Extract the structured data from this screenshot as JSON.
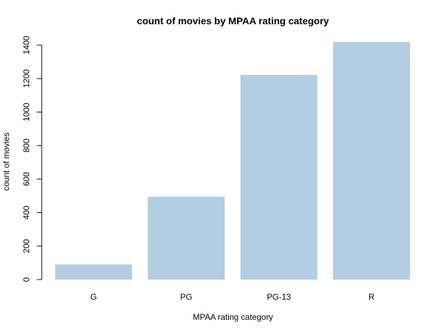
{
  "chart_data": {
    "type": "bar",
    "title": "count of movies by MPAA rating category",
    "xlabel": "MPAA rating category",
    "ylabel": "count of movies",
    "categories": [
      "G",
      "PG",
      "PG-13",
      "R"
    ],
    "values": [
      90,
      495,
      1222,
      1419
    ],
    "ylim": [
      0,
      1400
    ],
    "yticks": [
      0,
      200,
      400,
      600,
      800,
      1000,
      1200,
      1400
    ],
    "grid": false,
    "bar_color": "#b3cde3"
  }
}
